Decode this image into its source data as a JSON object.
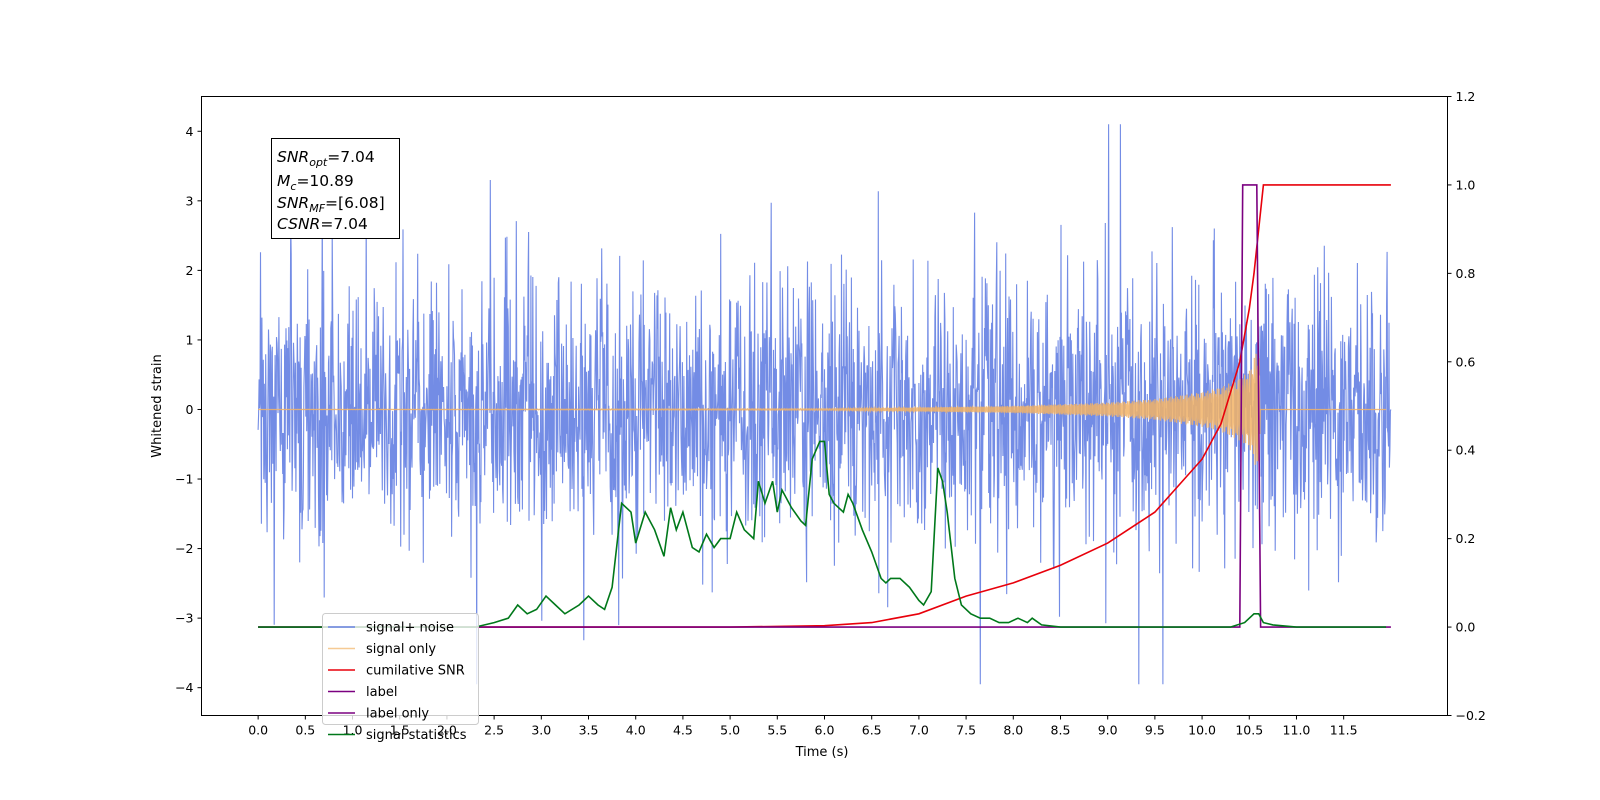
{
  "chart_data": {
    "type": "line",
    "xlabel": "Time (s)",
    "ylabel": "Whitened strain",
    "xlim": [
      -0.6,
      12.6
    ],
    "ylim": [
      -4.4,
      4.5
    ],
    "y2lim": [
      -0.2,
      1.2
    ],
    "x_ticks": [
      "0.0",
      "0.5",
      "1.0",
      "1.5",
      "2.0",
      "2.5",
      "3.0",
      "3.5",
      "4.0",
      "4.5",
      "5.0",
      "5.5",
      "6.0",
      "6.5",
      "7.0",
      "7.5",
      "8.0",
      "8.5",
      "9.0",
      "9.5",
      "10.0",
      "10.5",
      "11.0",
      "11.5"
    ],
    "y_ticks": [
      "4",
      "3",
      "2",
      "1",
      "0",
      "−1",
      "−2",
      "−3",
      "−4"
    ],
    "y2_ticks": [
      "1.2",
      "1.0",
      "0.8",
      "0.6",
      "0.4",
      "0.2",
      "0.0",
      "−0.2"
    ],
    "annotation": {
      "snr_opt": {
        "base": "SNR",
        "sub": "opt",
        "rest": "=7.04"
      },
      "mc": {
        "base": "M",
        "sub": "c",
        "rest": "=10.89"
      },
      "snr_mf": {
        "base": "SNR",
        "sub": "MF",
        "rest": "=[6.08]"
      },
      "csnr": {
        "base": "CSNR",
        "sub": "",
        "rest": "=7.04"
      }
    },
    "legend_position": "lower-left",
    "series": [
      {
        "name": "signal+ noise",
        "axis": "left",
        "color": "#6b86e4",
        "kind": "noise",
        "x_range": [
          0.0,
          12.0
        ],
        "envelope": [
          -2.0,
          2.0
        ],
        "max_peak": 4.13,
        "min_peak": -3.9
      },
      {
        "name": "signal only",
        "axis": "left",
        "color": "#f2b366",
        "kind": "chirp",
        "x": [
          0.0,
          6.0,
          8.0,
          9.0,
          9.5,
          10.0,
          10.2,
          10.4,
          10.5,
          10.6,
          10.62
        ],
        "amplitude": [
          0.0,
          0.01,
          0.05,
          0.1,
          0.15,
          0.25,
          0.32,
          0.45,
          0.55,
          0.95,
          0.0
        ]
      },
      {
        "name": "cumilative SNR",
        "axis": "right",
        "color": "#e8000b",
        "x": [
          0.0,
          5.0,
          6.0,
          6.5,
          7.0,
          7.5,
          8.0,
          8.5,
          9.0,
          9.5,
          10.0,
          10.2,
          10.4,
          10.5,
          10.55,
          10.6,
          10.65,
          12.0
        ],
        "y": [
          0.0,
          0.0,
          0.003,
          0.01,
          0.03,
          0.07,
          0.1,
          0.14,
          0.19,
          0.26,
          0.38,
          0.46,
          0.6,
          0.72,
          0.8,
          0.9,
          1.0,
          1.0
        ]
      },
      {
        "name": "label",
        "axis": "right",
        "color": "#7b0080",
        "x": [
          0.0,
          10.4,
          10.43,
          10.58,
          10.62,
          12.0
        ],
        "y": [
          0.0,
          0.0,
          1.0,
          1.0,
          0.0,
          0.0
        ]
      },
      {
        "name": "label only",
        "axis": "right",
        "color": "#7b0080",
        "hidden_in_plot": true,
        "x": [],
        "y": []
      },
      {
        "name": "signal statistics",
        "axis": "right",
        "color": "#00781a",
        "x": [
          0.0,
          2.3,
          2.5,
          2.65,
          2.75,
          2.85,
          2.95,
          3.05,
          3.15,
          3.25,
          3.4,
          3.5,
          3.6,
          3.67,
          3.75,
          3.85,
          3.95,
          4.0,
          4.1,
          4.2,
          4.3,
          4.37,
          4.43,
          4.5,
          4.6,
          4.67,
          4.75,
          4.83,
          4.9,
          5.0,
          5.07,
          5.15,
          5.25,
          5.3,
          5.37,
          5.45,
          5.5,
          5.55,
          5.65,
          5.75,
          5.8,
          5.87,
          5.95,
          6.0,
          6.05,
          6.1,
          6.2,
          6.25,
          6.3,
          6.4,
          6.5,
          6.6,
          6.65,
          6.7,
          6.8,
          6.9,
          7.0,
          7.05,
          7.13,
          7.2,
          7.25,
          7.3,
          7.38,
          7.45,
          7.55,
          7.65,
          7.75,
          7.85,
          7.95,
          8.05,
          8.15,
          8.2,
          8.3,
          8.5,
          9.0,
          10.0,
          10.3,
          10.45,
          10.55,
          10.6,
          10.65,
          10.75,
          11.0,
          11.95
        ],
        "y": [
          0.0,
          0.0,
          0.01,
          0.02,
          0.05,
          0.03,
          0.04,
          0.07,
          0.05,
          0.03,
          0.05,
          0.07,
          0.05,
          0.04,
          0.09,
          0.28,
          0.26,
          0.19,
          0.26,
          0.22,
          0.16,
          0.27,
          0.22,
          0.26,
          0.18,
          0.17,
          0.21,
          0.18,
          0.2,
          0.2,
          0.26,
          0.22,
          0.2,
          0.33,
          0.28,
          0.33,
          0.26,
          0.31,
          0.27,
          0.24,
          0.23,
          0.38,
          0.42,
          0.42,
          0.3,
          0.28,
          0.26,
          0.3,
          0.28,
          0.22,
          0.17,
          0.11,
          0.1,
          0.11,
          0.11,
          0.09,
          0.06,
          0.05,
          0.08,
          0.36,
          0.33,
          0.26,
          0.11,
          0.05,
          0.03,
          0.02,
          0.02,
          0.01,
          0.01,
          0.02,
          0.01,
          0.02,
          0.005,
          0.0,
          0.0,
          0.0,
          0.0,
          0.01,
          0.03,
          0.03,
          0.01,
          0.005,
          0.0,
          0.0
        ]
      }
    ]
  }
}
